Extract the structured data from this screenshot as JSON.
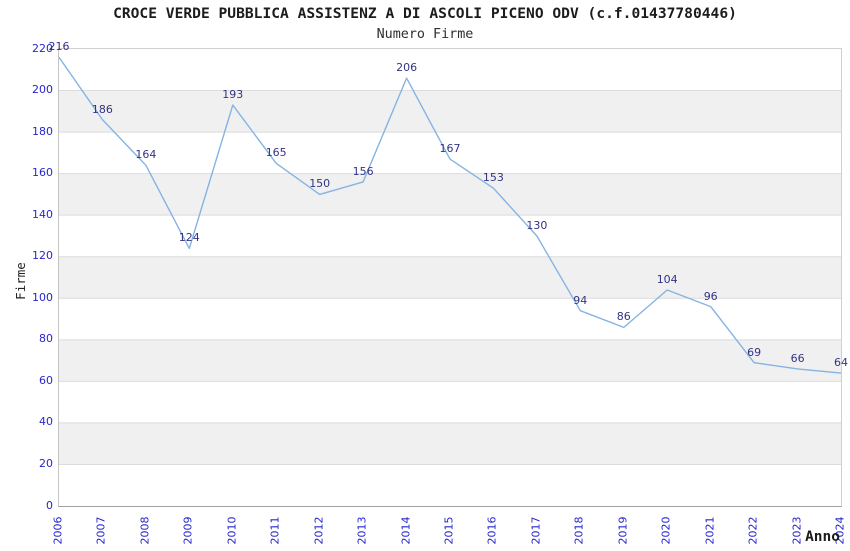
{
  "page": {
    "background": "#ffffff"
  },
  "chart_data": {
    "type": "line",
    "title": "CROCE VERDE PUBBLICA ASSISTENZ A DI ASCOLI PICENO ODV (c.f.01437780446)",
    "subtitle": "Numero Firme",
    "xlabel": "Anno",
    "ylabel": "Firme",
    "categories": [
      "2006",
      "2007",
      "2008",
      "2009",
      "2010",
      "2011",
      "2012",
      "2013",
      "2014",
      "2015",
      "2016",
      "2017",
      "2018",
      "2019",
      "2020",
      "2021",
      "2022",
      "2023",
      "2024"
    ],
    "values": [
      216,
      186,
      164,
      124,
      193,
      165,
      150,
      156,
      206,
      167,
      153,
      130,
      94,
      86,
      104,
      96,
      69,
      66,
      64
    ],
    "ylim": [
      0,
      220
    ],
    "ytick_step": 20,
    "yticks": [
      0,
      20,
      40,
      60,
      80,
      100,
      120,
      140,
      160,
      180,
      200,
      220
    ],
    "grid": "horizontal gridlines with alternating shaded bands",
    "bands": [
      [
        20,
        40
      ],
      [
        60,
        80
      ],
      [
        100,
        120
      ],
      [
        140,
        160
      ],
      [
        180,
        200
      ]
    ],
    "legend_position": "none",
    "show_value_labels": true,
    "colors": {
      "line": "#85b3e3",
      "tick_labels": "#2626cf",
      "value_labels": "#333385",
      "band_fill": "#f0f0f0",
      "gridline": "#dcdcdc",
      "plot_border": "#cfcfcf",
      "axis_bottom": "#a0a0a0",
      "title_text": "#1c1c1c"
    }
  }
}
